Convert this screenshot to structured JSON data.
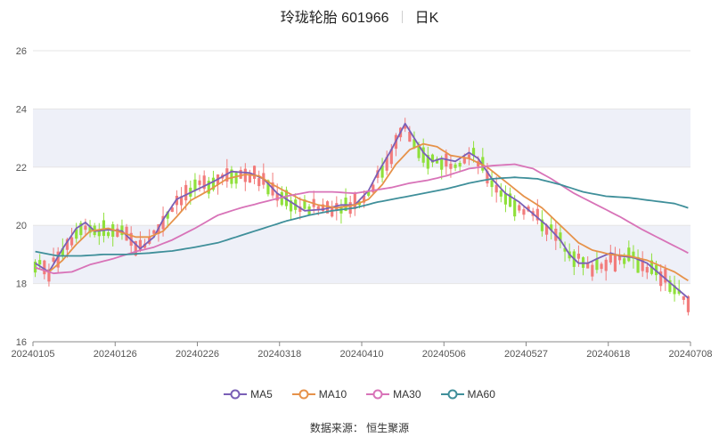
{
  "header": {
    "stock_name": "玲珑轮胎 601966",
    "period": "日K"
  },
  "footer": {
    "source": "数据来源： 恒生聚源"
  },
  "colors": {
    "up": "#f27b7b",
    "down": "#8fe03a",
    "ma5": "#7a5fb6",
    "ma10": "#e6924a",
    "ma30": "#d873b8",
    "ma60": "#3f8f9a",
    "band": "#eef0f8",
    "grid": "#e6e6e6",
    "axis": "#555555"
  },
  "chart_data": {
    "type": "candlestick",
    "y_ticks": [
      "16",
      "18",
      "20",
      "22",
      "24",
      "26"
    ],
    "ylim": [
      16,
      26
    ],
    "x_tick_labels": [
      "20240105",
      "20240126",
      "20240226",
      "20240318",
      "20240410",
      "20240506",
      "20240527",
      "20240618",
      "20240708"
    ],
    "legend": [
      "MA5",
      "MA10",
      "MA30",
      "MA60"
    ],
    "trend_anchors": [
      [
        0,
        18.7
      ],
      [
        3,
        18.4
      ],
      [
        6,
        19.2
      ],
      [
        10,
        20.0
      ],
      [
        14,
        19.8
      ],
      [
        19,
        19.7
      ],
      [
        23,
        19.2
      ],
      [
        27,
        19.9
      ],
      [
        31,
        20.9
      ],
      [
        36,
        21.3
      ],
      [
        42,
        21.8
      ],
      [
        48,
        21.7
      ],
      [
        53,
        21.1
      ],
      [
        58,
        20.6
      ],
      [
        63,
        20.6
      ],
      [
        68,
        20.7
      ],
      [
        72,
        20.9
      ],
      [
        76,
        21.9
      ],
      [
        81,
        23.4
      ],
      [
        84,
        22.4
      ],
      [
        88,
        22.2
      ],
      [
        92,
        22.2
      ],
      [
        96,
        22.4
      ],
      [
        100,
        21.5
      ],
      [
        104,
        20.8
      ],
      [
        108,
        20.5
      ],
      [
        112,
        20.0
      ],
      [
        116,
        19.3
      ],
      [
        121,
        18.5
      ],
      [
        125,
        18.8
      ],
      [
        130,
        18.9
      ],
      [
        134,
        18.6
      ],
      [
        139,
        18.0
      ],
      [
        143,
        17.2
      ]
    ],
    "ma_anchors": {
      "MA5": [
        [
          0,
          18.7
        ],
        [
          3,
          18.4
        ],
        [
          6,
          19.2
        ],
        [
          9,
          19.9
        ],
        [
          11,
          20.1
        ],
        [
          13,
          19.8
        ],
        [
          16,
          19.85
        ],
        [
          19,
          19.8
        ],
        [
          21,
          19.5
        ],
        [
          23,
          19.2
        ],
        [
          26,
          19.6
        ],
        [
          28,
          20.2
        ],
        [
          31,
          20.9
        ],
        [
          35,
          21.2
        ],
        [
          39,
          21.5
        ],
        [
          43,
          21.85
        ],
        [
          47,
          21.8
        ],
        [
          50,
          21.6
        ],
        [
          53,
          21.1
        ],
        [
          56,
          20.8
        ],
        [
          59,
          20.5
        ],
        [
          63,
          20.55
        ],
        [
          67,
          20.7
        ],
        [
          70,
          20.7
        ],
        [
          73,
          21.2
        ],
        [
          75,
          21.8
        ],
        [
          78,
          22.6
        ],
        [
          80,
          23.2
        ],
        [
          81,
          23.5
        ],
        [
          83,
          23.0
        ],
        [
          85,
          22.5
        ],
        [
          87,
          22.2
        ],
        [
          89,
          22.3
        ],
        [
          92,
          22.2
        ],
        [
          95,
          22.5
        ],
        [
          97,
          22.3
        ],
        [
          100,
          21.6
        ],
        [
          103,
          21.1
        ],
        [
          106,
          20.8
        ],
        [
          109,
          20.4
        ],
        [
          112,
          20.0
        ],
        [
          115,
          19.5
        ],
        [
          117,
          19.0
        ],
        [
          119,
          18.7
        ],
        [
          121,
          18.7
        ],
        [
          123,
          18.85
        ],
        [
          126,
          19.05
        ],
        [
          128,
          18.95
        ],
        [
          131,
          18.9
        ],
        [
          134,
          18.7
        ],
        [
          137,
          18.3
        ],
        [
          140,
          17.9
        ],
        [
          143,
          17.5
        ]
      ],
      "MA10": [
        [
          0,
          18.55
        ],
        [
          3,
          18.4
        ],
        [
          6,
          18.8
        ],
        [
          9,
          19.35
        ],
        [
          12,
          19.8
        ],
        [
          16,
          19.9
        ],
        [
          19,
          19.75
        ],
        [
          22,
          19.6
        ],
        [
          25,
          19.6
        ],
        [
          28,
          19.8
        ],
        [
          31,
          20.3
        ],
        [
          34,
          20.85
        ],
        [
          38,
          21.2
        ],
        [
          42,
          21.6
        ],
        [
          46,
          21.75
        ],
        [
          49,
          21.7
        ],
        [
          52,
          21.4
        ],
        [
          55,
          21.15
        ],
        [
          58,
          20.9
        ],
        [
          62,
          20.7
        ],
        [
          66,
          20.6
        ],
        [
          70,
          20.7
        ],
        [
          73,
          20.9
        ],
        [
          76,
          21.4
        ],
        [
          79,
          22.1
        ],
        [
          82,
          22.6
        ],
        [
          85,
          22.8
        ],
        [
          88,
          22.7
        ],
        [
          91,
          22.4
        ],
        [
          95,
          22.3
        ],
        [
          99,
          22.0
        ],
        [
          103,
          21.5
        ],
        [
          107,
          21.0
        ],
        [
          111,
          20.6
        ],
        [
          115,
          20.0
        ],
        [
          119,
          19.4
        ],
        [
          122,
          19.15
        ],
        [
          126,
          19.0
        ],
        [
          130,
          18.95
        ],
        [
          134,
          18.8
        ],
        [
          137,
          18.6
        ],
        [
          140,
          18.4
        ],
        [
          143,
          18.1
        ]
      ],
      "MA30": [
        [
          0,
          18.55
        ],
        [
          4,
          18.35
        ],
        [
          8,
          18.4
        ],
        [
          12,
          18.65
        ],
        [
          17,
          18.85
        ],
        [
          22,
          19.1
        ],
        [
          26,
          19.25
        ],
        [
          30,
          19.5
        ],
        [
          35,
          19.9
        ],
        [
          40,
          20.35
        ],
        [
          45,
          20.6
        ],
        [
          50,
          20.8
        ],
        [
          55,
          21.0
        ],
        [
          60,
          21.15
        ],
        [
          65,
          21.15
        ],
        [
          70,
          21.1
        ],
        [
          74,
          21.2
        ],
        [
          78,
          21.3
        ],
        [
          82,
          21.45
        ],
        [
          86,
          21.55
        ],
        [
          90,
          21.7
        ],
        [
          95,
          21.95
        ],
        [
          100,
          22.05
        ],
        [
          105,
          22.1
        ],
        [
          109,
          21.95
        ],
        [
          113,
          21.6
        ],
        [
          118,
          21.1
        ],
        [
          123,
          20.7
        ],
        [
          128,
          20.3
        ],
        [
          133,
          19.85
        ],
        [
          138,
          19.45
        ],
        [
          143,
          19.05
        ]
      ],
      "MA60": [
        [
          0,
          19.1
        ],
        [
          5,
          18.95
        ],
        [
          10,
          18.95
        ],
        [
          15,
          19.0
        ],
        [
          20,
          19.0
        ],
        [
          25,
          19.05
        ],
        [
          30,
          19.12
        ],
        [
          35,
          19.25
        ],
        [
          40,
          19.4
        ],
        [
          45,
          19.65
        ],
        [
          50,
          19.9
        ],
        [
          55,
          20.15
        ],
        [
          60,
          20.35
        ],
        [
          65,
          20.5
        ],
        [
          70,
          20.6
        ],
        [
          75,
          20.8
        ],
        [
          80,
          20.95
        ],
        [
          85,
          21.1
        ],
        [
          90,
          21.25
        ],
        [
          95,
          21.45
        ],
        [
          100,
          21.6
        ],
        [
          105,
          21.65
        ],
        [
          110,
          21.6
        ],
        [
          115,
          21.4
        ],
        [
          120,
          21.15
        ],
        [
          125,
          21.0
        ],
        [
          130,
          20.95
        ],
        [
          135,
          20.85
        ],
        [
          140,
          20.75
        ],
        [
          143,
          20.6
        ]
      ]
    }
  }
}
